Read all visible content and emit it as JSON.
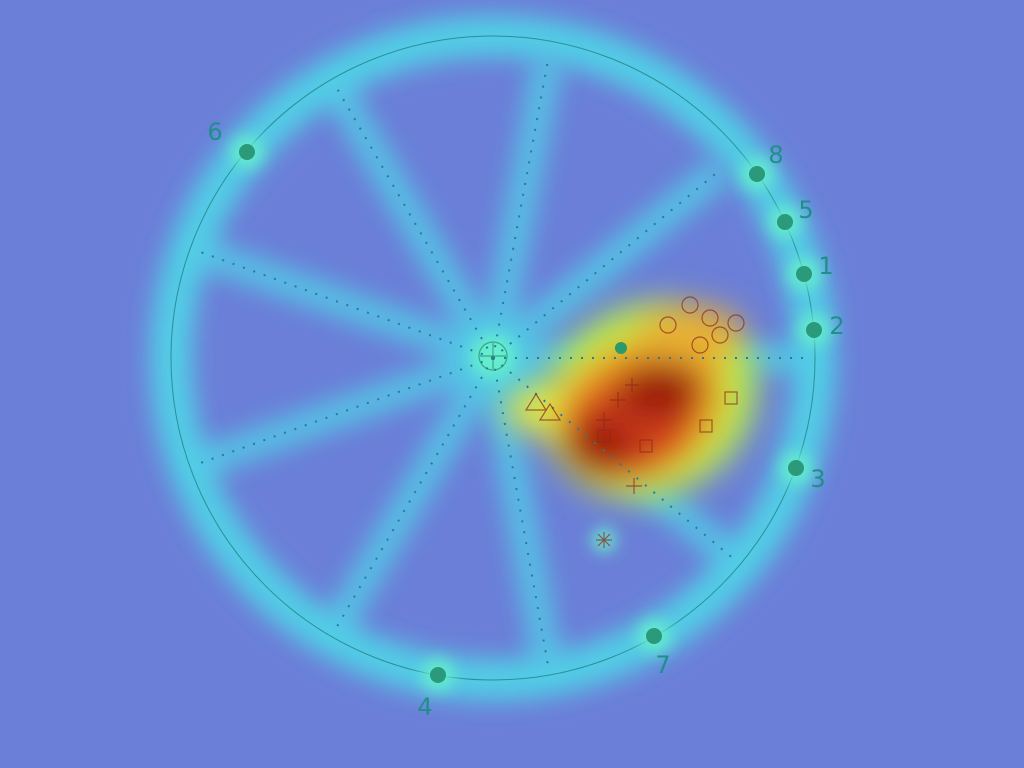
{
  "anchors": [
    {
      "label": "1"
    },
    {
      "label": "2"
    },
    {
      "label": "3"
    },
    {
      "label": "4"
    },
    {
      "label": "5"
    },
    {
      "label": "6"
    },
    {
      "label": "7"
    },
    {
      "label": "8"
    }
  ]
}
